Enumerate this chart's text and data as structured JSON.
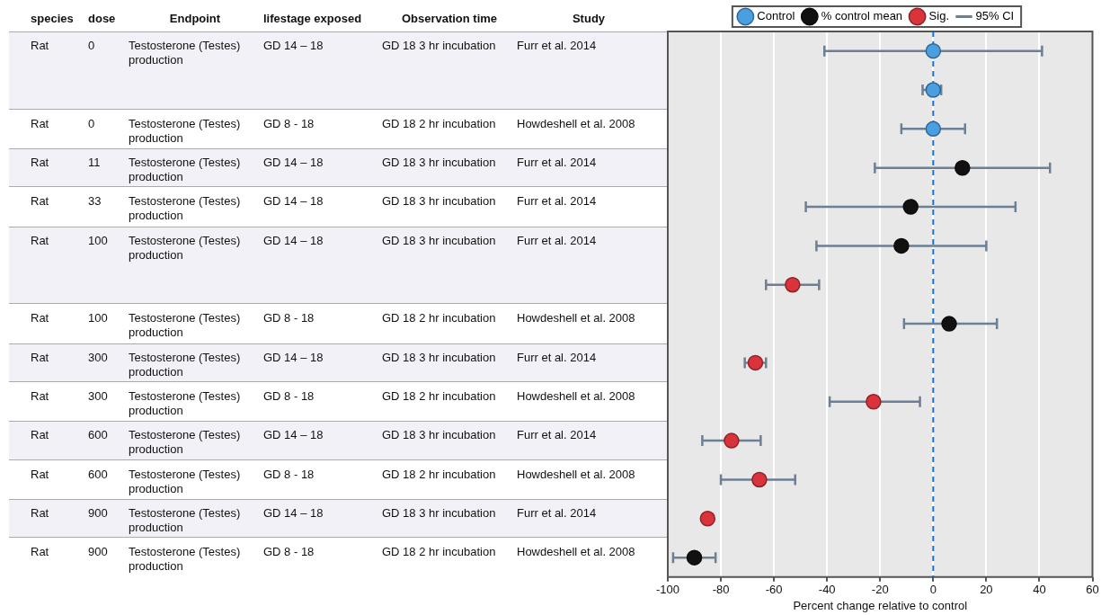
{
  "chart_data": [
    {
      "type": "other",
      "annotations": [
        "species",
        "dose",
        "Endpoint",
        "lifestage exposed",
        "Observation time",
        "Study",
        "Rat",
        "0",
        "Testosterone (Testes) production",
        "GD 14 – 18",
        "GD 18 3 hr incubation",
        "Furr et al. 2014",
        "Rat",
        "0",
        "Testosterone (Testes) production",
        "GD 8 - 18",
        "GD 18 2 hr incubation",
        "Howdeshell et al. 2008",
        "Rat",
        "11",
        "Testosterone (Testes) production",
        "GD 14 – 18",
        "GD 18 3 hr incubation",
        "Furr et al. 2014",
        "Rat",
        "33",
        "Testosterone (Testes) production",
        "GD 14 – 18",
        "GD 18 3 hr incubation",
        "Furr et al. 2014",
        "Rat",
        "100",
        "Testosterone (Testes) production",
        "GD 14 – 18",
        "GD 18 3 hr incubation",
        "Furr et al. 2014",
        "Rat",
        "100",
        "Testosterone (Testes) production",
        "GD 8 - 18",
        "GD 18 2 hr incubation",
        "Howdeshell et al. 2008",
        "Rat",
        "300",
        "Testosterone (Testes) production",
        "GD 14 – 18",
        "GD 18 3 hr incubation",
        "Furr et al. 2014",
        "Rat",
        "300",
        "Testosterone (Testes) production",
        "GD 8 - 18",
        "GD 18 2 hr incubation",
        "Howdeshell et al. 2008",
        "Rat",
        "600",
        "Testosterone (Testes) production",
        "GD 14 – 18",
        "GD 18 3 hr incubation",
        "Furr et al. 2014",
        "Rat",
        "600",
        "Testosterone (Testes) production",
        "GD 8 - 18",
        "GD 18 2 hr incubation",
        "Howdeshell et al. 2008",
        "Rat",
        "900",
        "Testosterone (Testes) production",
        "GD 14 – 18",
        "GD 18 3 hr incubation",
        "Furr et al. 2014",
        "Rat",
        "900",
        "Testosterone (Testes) production",
        "GD 8 - 18",
        "GD 18 2 hr incubation",
        "Howdeshell et al. 2008"
      ]
    },
    {
      "type": "scatter",
      "orientation": "horizontal",
      "xlabel": "Percent change relative to control",
      "categories": [
        null,
        null,
        null,
        null,
        null,
        null,
        null,
        null,
        null,
        null,
        null,
        null,
        null,
        null
      ],
      "series": [
        {
          "name": "Control",
          "color": "#4a9fe0",
          "values": [
            0,
            0,
            0,
            null,
            null,
            null,
            null,
            null,
            null,
            null,
            null,
            null,
            null,
            null
          ],
          "errors": [
            [
              -41,
              41
            ],
            [
              -4,
              3
            ],
            [
              -12,
              12
            ],
            null,
            null,
            null,
            null,
            null,
            null,
            null,
            null,
            null,
            null,
            null
          ]
        },
        {
          "name": "% control mean",
          "color": "#111111",
          "values": [
            null,
            null,
            null,
            11,
            -8.5,
            -12,
            null,
            6,
            null,
            null,
            null,
            null,
            null,
            -90
          ],
          "errors": [
            null,
            null,
            null,
            [
              -22,
              44
            ],
            [
              -48,
              31
            ],
            [
              -44,
              20
            ],
            null,
            [
              -11,
              24
            ],
            null,
            null,
            null,
            null,
            null,
            [
              -98,
              -82
            ]
          ]
        },
        {
          "name": "Sig.",
          "color": "#d9343c",
          "values": [
            null,
            null,
            null,
            null,
            null,
            null,
            -53,
            null,
            -67,
            -22.5,
            -76,
            -65.5,
            -85,
            null
          ],
          "errors": [
            null,
            null,
            null,
            null,
            null,
            null,
            [
              -63,
              -43
            ],
            null,
            [
              -71,
              -63
            ],
            [
              -39,
              -5
            ],
            [
              -87,
              -65
            ],
            [
              -80,
              -52
            ],
            null,
            null
          ]
        }
      ],
      "annotations": [
        "95% CI"
      ],
      "xlim": [
        -100,
        60
      ],
      "xticks": [
        -100,
        -80,
        -60,
        -40,
        -20,
        0,
        20,
        40,
        60
      ],
      "ref_lines": [
        {
          "axis": "x",
          "value": 0,
          "color": "#1f6fd0",
          "line_style": "dashed"
        }
      ],
      "grid": "x",
      "legend": "top",
      "marker": "circle"
    }
  ]
}
